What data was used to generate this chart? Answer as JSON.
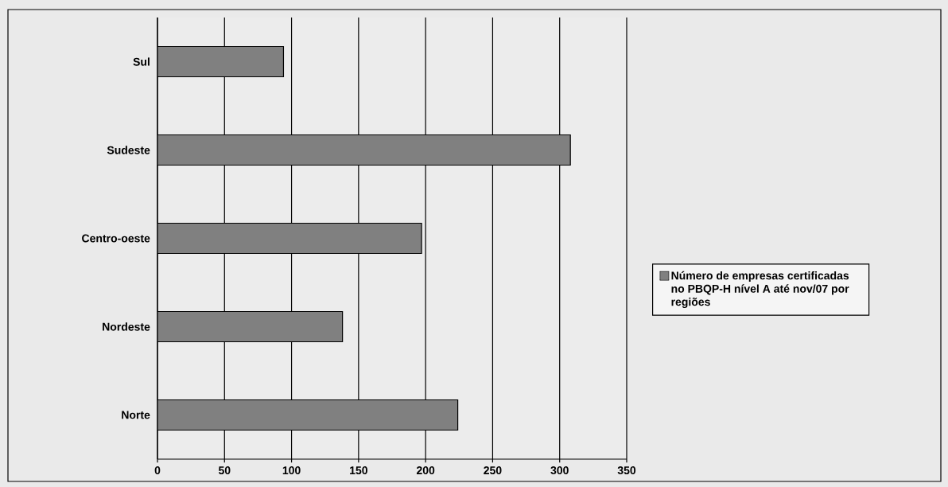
{
  "chart_data": {
    "type": "bar",
    "orientation": "horizontal",
    "categories": [
      "Sul",
      "Sudeste",
      "Centro-oeste",
      "Nordeste",
      "Norte"
    ],
    "series": [
      {
        "name": "Número de empresas certificadas no PBQP-H nível A até nov/07 por regiões",
        "color": "#808080",
        "values": [
          94,
          308,
          197,
          138,
          224
        ]
      }
    ],
    "xlim": [
      0,
      350
    ],
    "xticks": [
      0,
      50,
      100,
      150,
      200,
      250,
      300,
      350
    ],
    "grid": "x",
    "legend": "right"
  }
}
